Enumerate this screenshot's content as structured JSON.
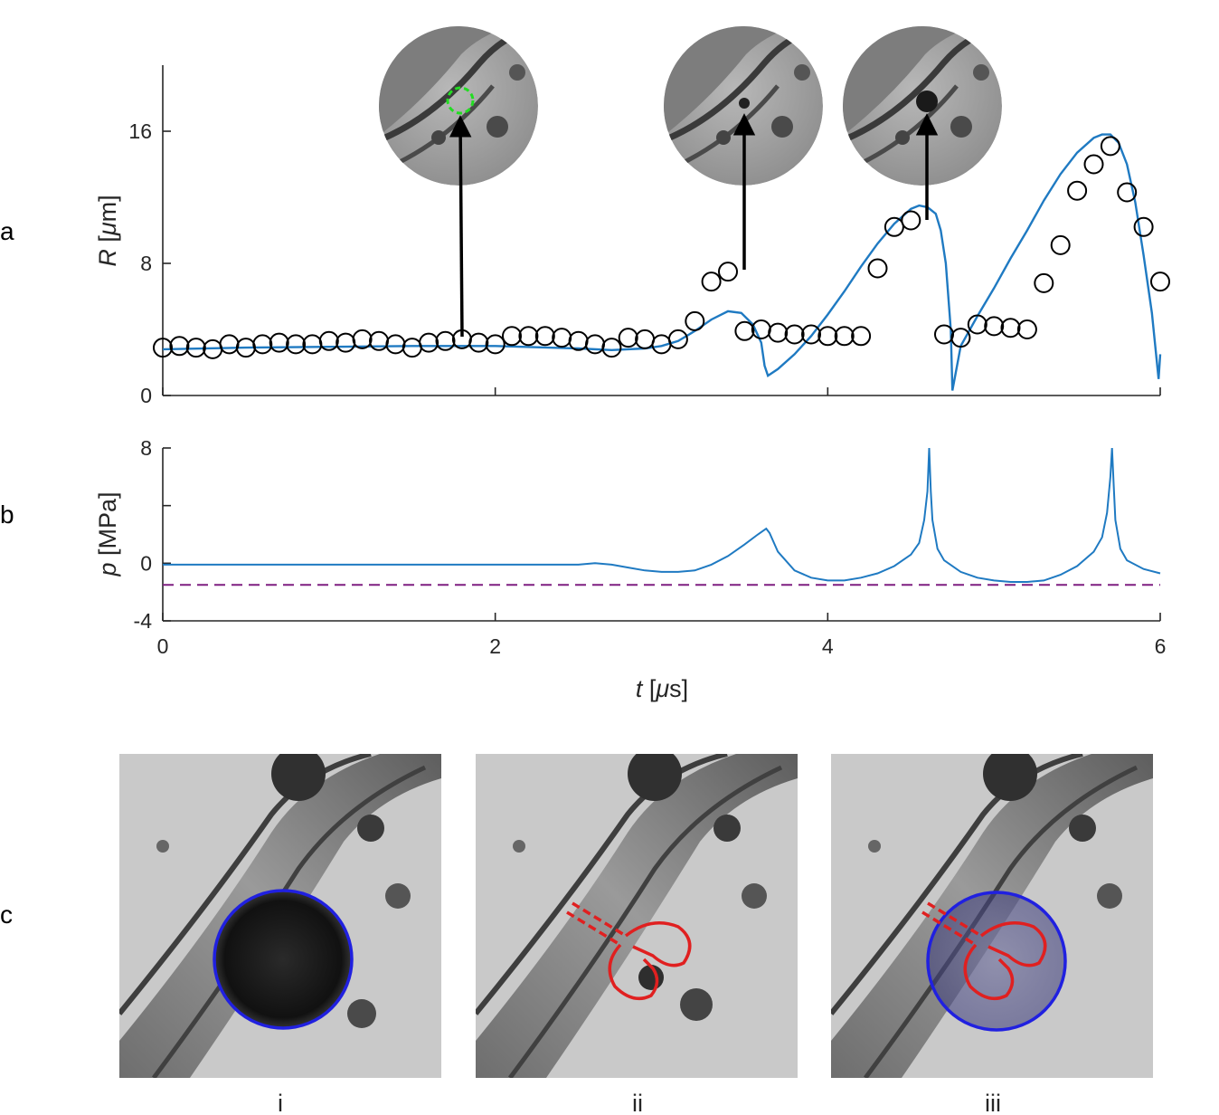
{
  "panel_letters": {
    "a": "a",
    "b": "b",
    "c": "c"
  },
  "subpanel_labels": [
    "i",
    "ii",
    "iii"
  ],
  "colors": {
    "model_line": "#1f7ac2",
    "threshold_line": "#7e1e80",
    "markers": "#000000",
    "axes": "#262626",
    "insert_circle": "#2020e0",
    "lobe_outline": "#e02020",
    "initial_bubble_ring": "#22dd22"
  },
  "chart_data": [
    {
      "type": "scatter",
      "panel": "a",
      "xlabel": "",
      "ylabel_symbol": "R",
      "ylabel_unit_open": " [",
      "ylabel_unit_mu": "μ",
      "ylabel_unit_close": "m]",
      "xlim": [
        0,
        6
      ],
      "ylim": [
        0,
        20
      ],
      "yticks": [
        0,
        8,
        16
      ],
      "ytick_labels": [
        "0",
        "8",
        "16"
      ],
      "xticks": [
        0,
        2,
        4,
        6
      ],
      "grid": false,
      "legend": "none",
      "series": [
        {
          "kind": "markers",
          "marker": "open-circle",
          "x": [
            0.0,
            0.1,
            0.2,
            0.3,
            0.4,
            0.5,
            0.6,
            0.7,
            0.8,
            0.9,
            1.0,
            1.1,
            1.2,
            1.3,
            1.4,
            1.5,
            1.6,
            1.7,
            1.8,
            1.9,
            2.0,
            2.1,
            2.2,
            2.3,
            2.4,
            2.5,
            2.6,
            2.7,
            2.8,
            2.9,
            3.0,
            3.1,
            3.2,
            3.3,
            3.4,
            3.5,
            3.6,
            3.7,
            3.8,
            3.9,
            4.0,
            4.1,
            4.2,
            4.3,
            4.4,
            4.5,
            4.6,
            4.7,
            4.8,
            4.9,
            5.0,
            5.1,
            5.2,
            5.3,
            5.4,
            5.5,
            5.6,
            5.7,
            5.8,
            5.9,
            6.0
          ],
          "y": [
            2.9,
            3.0,
            2.9,
            2.8,
            3.1,
            2.9,
            3.1,
            3.2,
            3.1,
            3.1,
            3.3,
            3.2,
            3.4,
            3.3,
            3.1,
            2.9,
            3.2,
            3.3,
            3.4,
            3.2,
            3.1,
            3.6,
            3.6,
            3.6,
            3.5,
            3.3,
            3.1,
            2.9,
            3.5,
            3.4,
            3.1,
            3.4,
            4.5,
            6.9,
            7.5,
            3.9,
            4.0,
            3.8,
            3.7,
            3.7,
            3.6,
            3.6,
            3.6,
            7.7,
            10.2,
            10.6,
            null,
            3.7,
            3.5,
            4.3,
            4.2,
            4.1,
            4.0,
            6.8,
            9.1,
            12.4,
            14.0,
            15.1,
            12.3,
            10.2,
            6.9
          ]
        },
        {
          "kind": "line",
          "x": [
            0.0,
            0.5,
            1.0,
            1.5,
            2.0,
            2.5,
            2.7,
            2.9,
            3.0,
            3.1,
            3.2,
            3.3,
            3.4,
            3.48,
            3.55,
            3.6,
            3.62,
            3.64,
            3.7,
            3.8,
            3.9,
            4.0,
            4.1,
            4.2,
            4.3,
            4.4,
            4.5,
            4.55,
            4.6,
            4.65,
            4.68,
            4.71,
            4.74,
            4.75,
            4.8,
            4.9,
            5.0,
            5.1,
            5.2,
            5.3,
            5.4,
            5.5,
            5.6,
            5.65,
            5.7,
            5.75,
            5.8,
            5.85,
            5.9,
            5.95,
            5.99,
            6.0
          ],
          "y": [
            2.8,
            2.9,
            2.95,
            3.0,
            3.0,
            2.85,
            2.75,
            2.85,
            3.0,
            3.3,
            3.9,
            4.6,
            5.1,
            5.0,
            4.3,
            3.2,
            1.8,
            1.2,
            1.6,
            2.5,
            3.6,
            4.9,
            6.3,
            7.8,
            9.2,
            10.4,
            11.3,
            11.5,
            11.4,
            11.0,
            10.0,
            8.0,
            4.0,
            0.3,
            3.0,
            4.8,
            6.5,
            8.3,
            10.0,
            11.8,
            13.4,
            14.7,
            15.6,
            15.8,
            15.8,
            15.3,
            14.0,
            11.7,
            8.5,
            5.0,
            1.0,
            2.5
          ]
        }
      ],
      "inset_markers_at": [
        {
          "x": 1.8,
          "y": 3.4,
          "label": ""
        },
        {
          "x": 3.5,
          "y": 7.5,
          "label": ""
        },
        {
          "x": 4.6,
          "y": 10.6,
          "label": ""
        }
      ]
    },
    {
      "type": "line",
      "panel": "b",
      "xlabel_symbol": "t",
      "xlabel_unit_open": " [",
      "xlabel_unit_mu": "μ",
      "xlabel_unit_close": "s]",
      "ylabel_symbol": "p",
      "ylabel_unit": " [MPa]",
      "xlim": [
        0,
        6
      ],
      "ylim": [
        -4,
        8
      ],
      "xticks": [
        0,
        2,
        4,
        6
      ],
      "xtick_labels": [
        "0",
        "2",
        "4",
        "6"
      ],
      "yticks": [
        -4,
        0,
        8
      ],
      "ytick_labels": [
        "-4",
        "0",
        "8"
      ],
      "grid": false,
      "legend": "none",
      "series": [
        {
          "kind": "line",
          "x": [
            0.0,
            0.5,
            1.0,
            1.5,
            2.0,
            2.5,
            2.6,
            2.7,
            2.8,
            2.9,
            3.0,
            3.1,
            3.2,
            3.3,
            3.4,
            3.5,
            3.58,
            3.63,
            3.65,
            3.7,
            3.8,
            3.9,
            4.0,
            4.1,
            4.2,
            4.3,
            4.4,
            4.5,
            4.55,
            4.58,
            4.6,
            4.61,
            4.62,
            4.63,
            4.66,
            4.7,
            4.8,
            4.9,
            5.0,
            5.1,
            5.15,
            5.2,
            5.3,
            5.4,
            5.5,
            5.6,
            5.65,
            5.68,
            5.7,
            5.71,
            5.72,
            5.73,
            5.76,
            5.8,
            5.9,
            6.0
          ],
          "y": [
            -0.1,
            -0.1,
            -0.1,
            -0.1,
            -0.1,
            -0.1,
            0.0,
            -0.1,
            -0.3,
            -0.5,
            -0.6,
            -0.6,
            -0.5,
            -0.1,
            0.5,
            1.3,
            2.0,
            2.4,
            2.1,
            0.8,
            -0.5,
            -1.0,
            -1.2,
            -1.2,
            -1.0,
            -0.7,
            -0.2,
            0.6,
            1.4,
            3.0,
            5.0,
            8.0,
            5.0,
            3.0,
            1.0,
            0.2,
            -0.6,
            -1.0,
            -1.2,
            -1.3,
            -1.3,
            -1.3,
            -1.2,
            -0.8,
            -0.2,
            0.8,
            1.8,
            3.5,
            6.0,
            8.0,
            5.5,
            3.0,
            1.0,
            0.2,
            -0.4,
            -0.7
          ]
        },
        {
          "kind": "dashed-horizontal",
          "y": -1.5
        }
      ]
    }
  ]
}
